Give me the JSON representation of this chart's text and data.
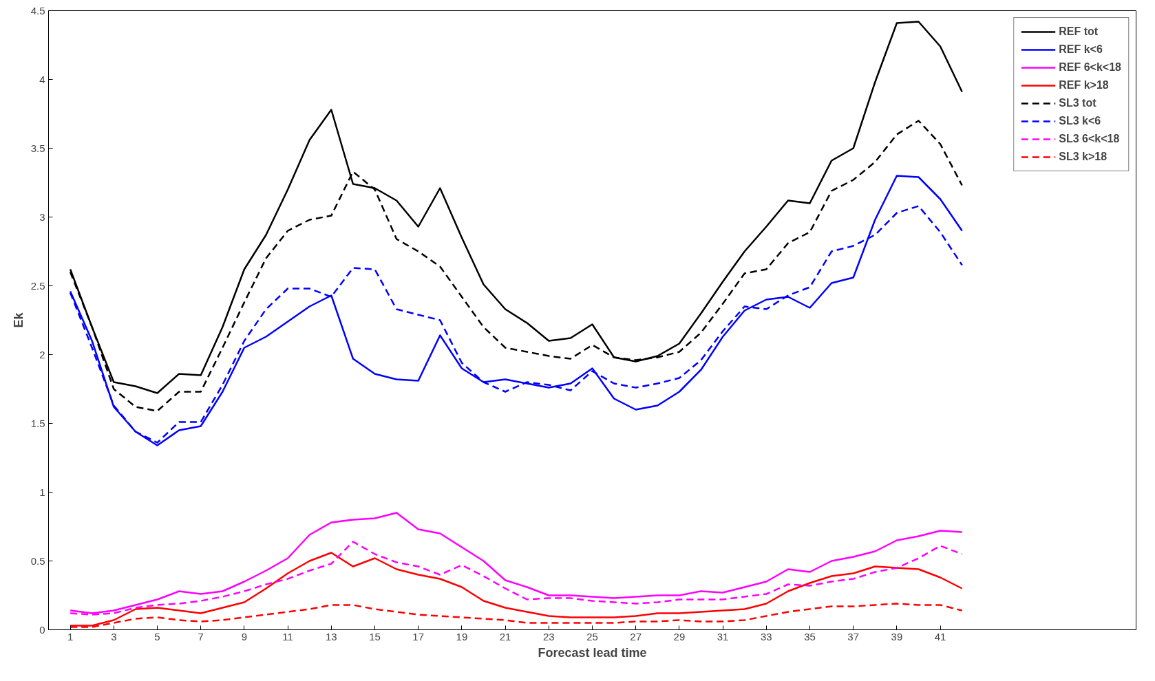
{
  "chart_data": {
    "type": "line",
    "xlabel": "Forecast lead time",
    "ylabel": "Ek",
    "x": [
      1,
      2,
      3,
      4,
      5,
      6,
      7,
      8,
      9,
      10,
      11,
      12,
      13,
      14,
      15,
      16,
      17,
      18,
      19,
      20,
      21,
      22,
      23,
      24,
      25,
      26,
      27,
      28,
      29,
      30,
      31,
      32,
      33,
      34,
      35,
      36,
      37,
      38,
      39,
      40,
      41,
      42
    ],
    "xlim": [
      0,
      50
    ],
    "xticks": [
      1,
      3,
      5,
      7,
      9,
      11,
      13,
      15,
      17,
      19,
      21,
      23,
      25,
      27,
      29,
      31,
      33,
      35,
      37,
      39,
      41
    ],
    "ylim": [
      0,
      4.5
    ],
    "yticks": [
      0,
      0.5,
      1,
      1.5,
      2,
      2.5,
      3,
      3.5,
      4,
      4.5
    ],
    "grid": false,
    "legend": "top right",
    "series": [
      {
        "name": "REF tot",
        "color": "#000000",
        "line_style": "solid",
        "values": [
          2.62,
          2.2,
          1.8,
          1.77,
          1.72,
          1.86,
          1.85,
          2.2,
          2.62,
          2.87,
          3.2,
          3.56,
          3.78,
          3.24,
          3.21,
          3.12,
          2.93,
          3.21,
          2.85,
          2.51,
          2.33,
          2.23,
          2.1,
          2.12,
          2.22,
          1.98,
          1.95,
          1.99,
          2.08,
          2.3,
          2.53,
          2.75,
          2.93,
          3.12,
          3.1,
          3.41,
          3.5,
          3.98,
          4.41,
          4.42,
          4.24,
          3.91
        ]
      },
      {
        "name": "REF k<6",
        "color": "#0000ff",
        "line_style": "solid",
        "values": [
          2.46,
          2.1,
          1.62,
          1.44,
          1.34,
          1.45,
          1.48,
          1.73,
          2.05,
          2.13,
          2.24,
          2.35,
          2.43,
          1.97,
          1.86,
          1.82,
          1.81,
          2.14,
          1.9,
          1.8,
          1.82,
          1.79,
          1.76,
          1.79,
          1.9,
          1.68,
          1.6,
          1.63,
          1.73,
          1.89,
          2.13,
          2.32,
          2.4,
          2.42,
          2.34,
          2.52,
          2.56,
          2.98,
          3.3,
          3.29,
          3.13,
          2.9
        ]
      },
      {
        "name": "REF 6<k<18",
        "color": "#ff00ff",
        "line_style": "solid",
        "values": [
          0.14,
          0.12,
          0.14,
          0.18,
          0.22,
          0.28,
          0.26,
          0.28,
          0.35,
          0.43,
          0.52,
          0.69,
          0.78,
          0.8,
          0.81,
          0.85,
          0.73,
          0.7,
          0.6,
          0.5,
          0.36,
          0.31,
          0.25,
          0.25,
          0.24,
          0.23,
          0.24,
          0.25,
          0.25,
          0.28,
          0.27,
          0.31,
          0.35,
          0.44,
          0.42,
          0.5,
          0.53,
          0.57,
          0.65,
          0.68,
          0.72,
          0.71
        ]
      },
      {
        "name": "REF k>18",
        "color": "#ff0000",
        "line_style": "solid",
        "values": [
          0.03,
          0.03,
          0.07,
          0.15,
          0.16,
          0.14,
          0.12,
          0.16,
          0.2,
          0.3,
          0.41,
          0.5,
          0.56,
          0.46,
          0.52,
          0.44,
          0.4,
          0.37,
          0.31,
          0.21,
          0.16,
          0.13,
          0.1,
          0.09,
          0.09,
          0.09,
          0.1,
          0.12,
          0.12,
          0.13,
          0.14,
          0.15,
          0.19,
          0.28,
          0.34,
          0.39,
          0.41,
          0.46,
          0.45,
          0.44,
          0.38,
          0.3
        ]
      },
      {
        "name": "SL3 tot",
        "color": "#000000",
        "line_style": "dashed",
        "values": [
          2.6,
          2.2,
          1.75,
          1.62,
          1.59,
          1.73,
          1.73,
          2.05,
          2.38,
          2.7,
          2.9,
          2.98,
          3.01,
          3.33,
          3.2,
          2.84,
          2.75,
          2.64,
          2.42,
          2.2,
          2.05,
          2.02,
          1.99,
          1.97,
          2.07,
          1.98,
          1.96,
          1.98,
          2.02,
          2.16,
          2.37,
          2.59,
          2.62,
          2.81,
          2.89,
          3.19,
          3.27,
          3.4,
          3.6,
          3.7,
          3.53,
          3.23
        ]
      },
      {
        "name": "SL3 k<6",
        "color": "#0000ff",
        "line_style": "dashed",
        "values": [
          2.45,
          2.05,
          1.63,
          1.44,
          1.36,
          1.51,
          1.51,
          1.78,
          2.1,
          2.33,
          2.48,
          2.48,
          2.42,
          2.63,
          2.62,
          2.33,
          2.29,
          2.25,
          1.94,
          1.8,
          1.73,
          1.8,
          1.78,
          1.74,
          1.88,
          1.79,
          1.76,
          1.79,
          1.83,
          1.96,
          2.17,
          2.35,
          2.33,
          2.43,
          2.49,
          2.75,
          2.79,
          2.87,
          3.03,
          3.08,
          2.89,
          2.65
        ]
      },
      {
        "name": "SL3 6<k<18",
        "color": "#ff00ff",
        "line_style": "dashed",
        "values": [
          0.12,
          0.11,
          0.12,
          0.16,
          0.18,
          0.19,
          0.21,
          0.24,
          0.28,
          0.33,
          0.37,
          0.43,
          0.48,
          0.64,
          0.55,
          0.49,
          0.46,
          0.4,
          0.47,
          0.39,
          0.3,
          0.22,
          0.23,
          0.23,
          0.21,
          0.2,
          0.19,
          0.2,
          0.22,
          0.22,
          0.22,
          0.24,
          0.26,
          0.33,
          0.32,
          0.35,
          0.37,
          0.42,
          0.45,
          0.52,
          0.61,
          0.55
        ]
      },
      {
        "name": "SL3 k>18",
        "color": "#ff0000",
        "line_style": "dashed",
        "values": [
          0.02,
          0.02,
          0.05,
          0.08,
          0.09,
          0.07,
          0.06,
          0.07,
          0.09,
          0.11,
          0.13,
          0.15,
          0.18,
          0.18,
          0.15,
          0.13,
          0.11,
          0.1,
          0.09,
          0.08,
          0.07,
          0.05,
          0.05,
          0.05,
          0.05,
          0.05,
          0.06,
          0.06,
          0.07,
          0.06,
          0.06,
          0.07,
          0.1,
          0.13,
          0.15,
          0.17,
          0.17,
          0.18,
          0.19,
          0.18,
          0.18,
          0.14
        ]
      }
    ]
  }
}
